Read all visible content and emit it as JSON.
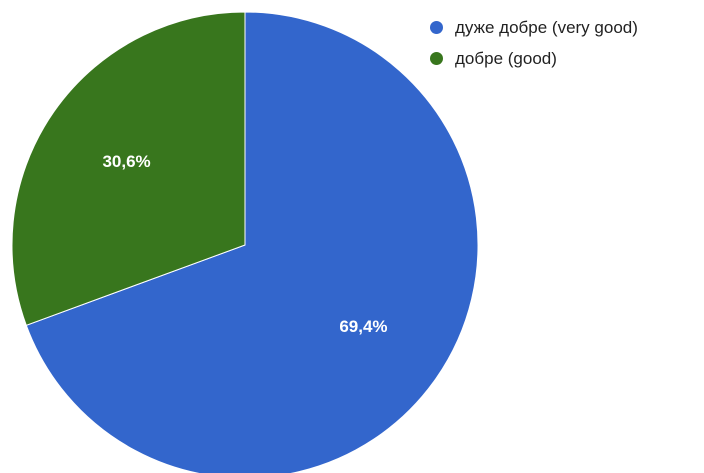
{
  "chart_data": {
    "type": "pie",
    "title": "",
    "series": [
      {
        "values": [
          69.4,
          30.6
        ]
      }
    ],
    "categories": [
      "дуже добре (very good)",
      "добре (good)"
    ],
    "slice_labels": [
      "69,4%",
      "30,6%"
    ],
    "colors": [
      "#3366cc",
      "#38761d"
    ],
    "start_angle_deg": 0,
    "direction": "clockwise",
    "legend_position": "top-right"
  },
  "legend": {
    "items": [
      {
        "label": "дуже добре (very good)",
        "color": "#3366cc"
      },
      {
        "label": "добре (good)",
        "color": "#38761d"
      }
    ]
  }
}
